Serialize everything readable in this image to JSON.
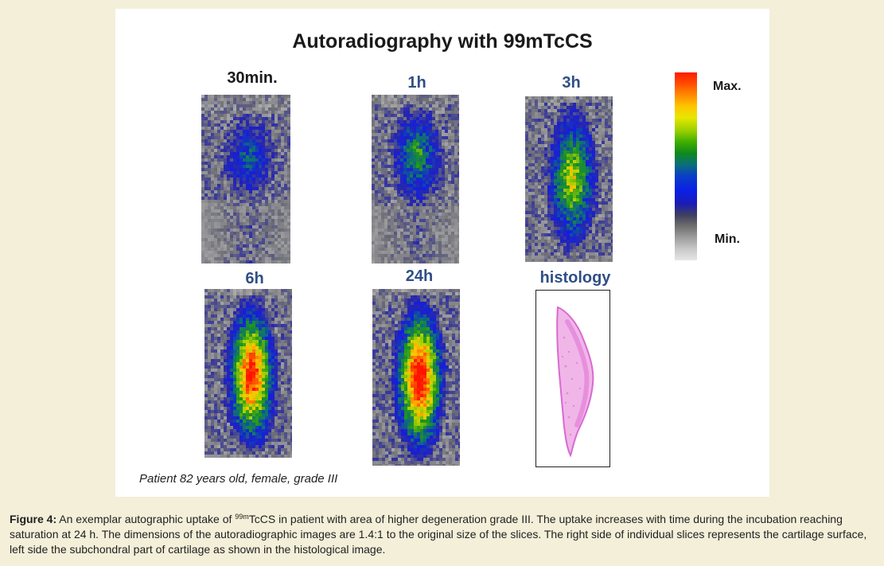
{
  "figure": {
    "title": "Autoradiography with 99mTcCS",
    "panels": [
      {
        "label": "30min.",
        "kind": "scan"
      },
      {
        "label": "1h",
        "kind": "scan"
      },
      {
        "label": "3h",
        "kind": "scan"
      },
      {
        "label": "6h",
        "kind": "scan"
      },
      {
        "label": "24h",
        "kind": "scan"
      },
      {
        "label": "histology",
        "kind": "histology"
      }
    ],
    "colorbar": {
      "max_label": "Max.",
      "min_label": "Min."
    },
    "patient_note": "Patient 82 years old, female, grade III"
  },
  "caption": {
    "label": "Figure 4:",
    "text_before": " An exemplar autographic uptake of ",
    "isotope_sup": "99m",
    "text_after": "TcCS in patient with area of higher degeneration grade III. The uptake increases with time during the incubation reaching saturation at 24 h. The dimensions of the autoradiographic images are 1.4:1 to the original size of the slices. The right side of individual slices represents the cartilage surface, left side the subchondral part of cartilage as shown in the histological image."
  }
}
